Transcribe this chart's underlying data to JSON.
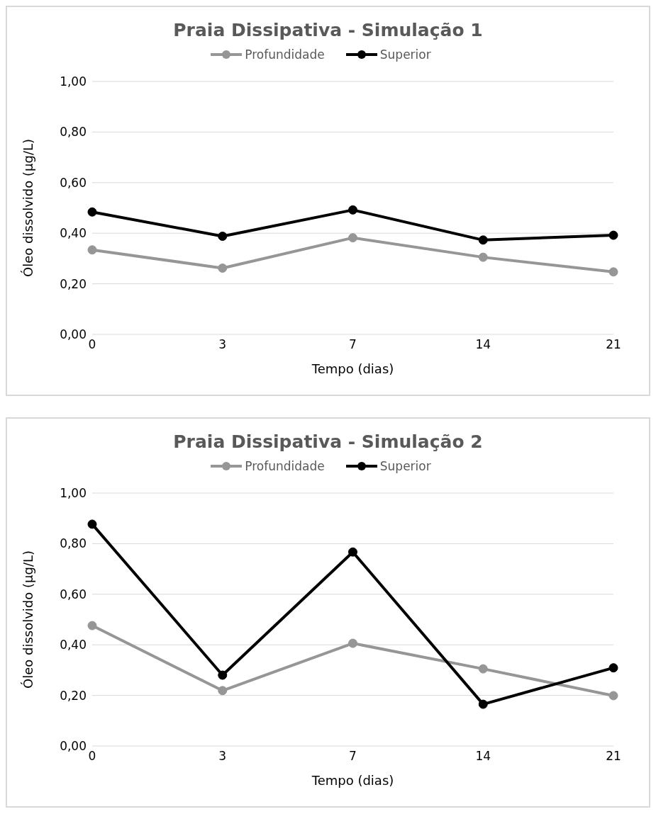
{
  "chart_data": [
    {
      "type": "line",
      "title": "Praia Dissipativa - Simulação 1",
      "xlabel": "Tempo (dias)",
      "ylabel": "Óleo dissolvido (µg/L)",
      "categories": [
        "0",
        "3",
        "7",
        "14",
        "21"
      ],
      "series": [
        {
          "name": "Profundidade",
          "color": "#969696",
          "values": [
            0.334,
            0.262,
            0.382,
            0.305,
            0.247
          ]
        },
        {
          "name": "Superior",
          "color": "#000000",
          "values": [
            0.484,
            0.388,
            0.492,
            0.373,
            0.392
          ]
        }
      ],
      "ylim": [
        0,
        1
      ],
      "yticks": [
        {
          "value": 0,
          "label": "0,00"
        },
        {
          "value": 0.2,
          "label": "0,20"
        },
        {
          "value": 0.4,
          "label": "0,40"
        },
        {
          "value": 0.6,
          "label": "0,60"
        },
        {
          "value": 0.8,
          "label": "0,80"
        },
        {
          "value": 1,
          "label": "1,00"
        }
      ],
      "grid": "y",
      "legend": "top",
      "marker": "circle",
      "line_style": "solid"
    },
    {
      "type": "line",
      "title": "Praia Dissipativa - Simulação 2",
      "xlabel": "Tempo (dias)",
      "ylabel": "Óleo dissolvido (µg/L)",
      "categories": [
        "0",
        "3",
        "7",
        "14",
        "21"
      ],
      "series": [
        {
          "name": "Profundidade",
          "color": "#969696",
          "values": [
            0.476,
            0.219,
            0.406,
            0.305,
            0.199
          ]
        },
        {
          "name": "Superior",
          "color": "#000000",
          "values": [
            0.877,
            0.28,
            0.767,
            0.165,
            0.309
          ]
        }
      ],
      "ylim": [
        0,
        1
      ],
      "yticks": [
        {
          "value": 0,
          "label": "0,00"
        },
        {
          "value": 0.2,
          "label": "0,20"
        },
        {
          "value": 0.4,
          "label": "0,40"
        },
        {
          "value": 0.6,
          "label": "0,60"
        },
        {
          "value": 0.8,
          "label": "0,80"
        },
        {
          "value": 1,
          "label": "1,00"
        }
      ],
      "grid": "y",
      "legend": "top",
      "marker": "circle",
      "line_style": "solid"
    }
  ]
}
